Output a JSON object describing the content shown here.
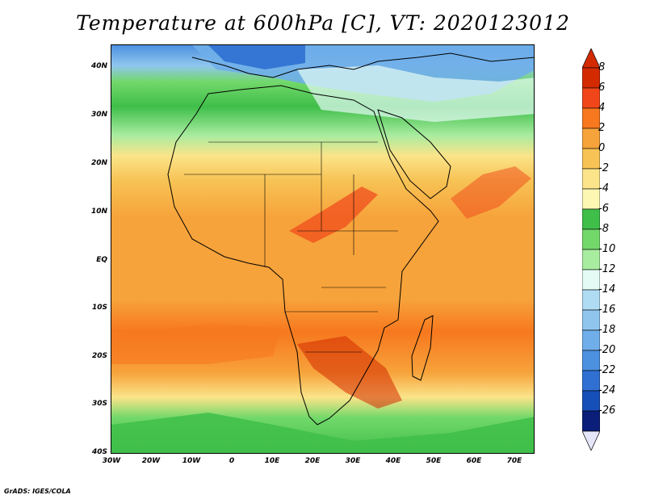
{
  "title": "Temperature at 600hPa [C], VT: 2020123012",
  "credit": "GrADS: IGES/COLA",
  "map": {
    "region": "Africa",
    "variable": "Temperature",
    "level": "600hPa",
    "units": "C",
    "valid_time": "2020123012",
    "lon_range": [
      -30,
      75
    ],
    "lat_range": [
      -40,
      45
    ]
  },
  "lat_labels": [
    "40N",
    "30N",
    "20N",
    "10N",
    "EQ",
    "10S",
    "20S",
    "30S",
    "40S"
  ],
  "lon_labels": [
    "30W",
    "20W",
    "10W",
    "0",
    "10E",
    "20E",
    "30E",
    "40E",
    "50E",
    "60E",
    "70E"
  ],
  "colorbar": {
    "labels": [
      "8",
      "6",
      "4",
      "2",
      "0",
      "-2",
      "-4",
      "-6",
      "-8",
      "-10",
      "-12",
      "-14",
      "-16",
      "-18",
      "-20",
      "-22",
      "-24",
      "-26"
    ],
    "colors": [
      "#d42a00",
      "#f0461a",
      "#f7781e",
      "#f7a33b",
      "#f7c355",
      "#fbe48a",
      "#fcf7b3",
      "#3fbe4a",
      "#72d86a",
      "#a8eca0",
      "#e4fbf5",
      "#b0dcf3",
      "#90c6ee",
      "#6faee9",
      "#4c90e0",
      "#2f70d2",
      "#174fb8",
      "#0a1e7a"
    ]
  }
}
